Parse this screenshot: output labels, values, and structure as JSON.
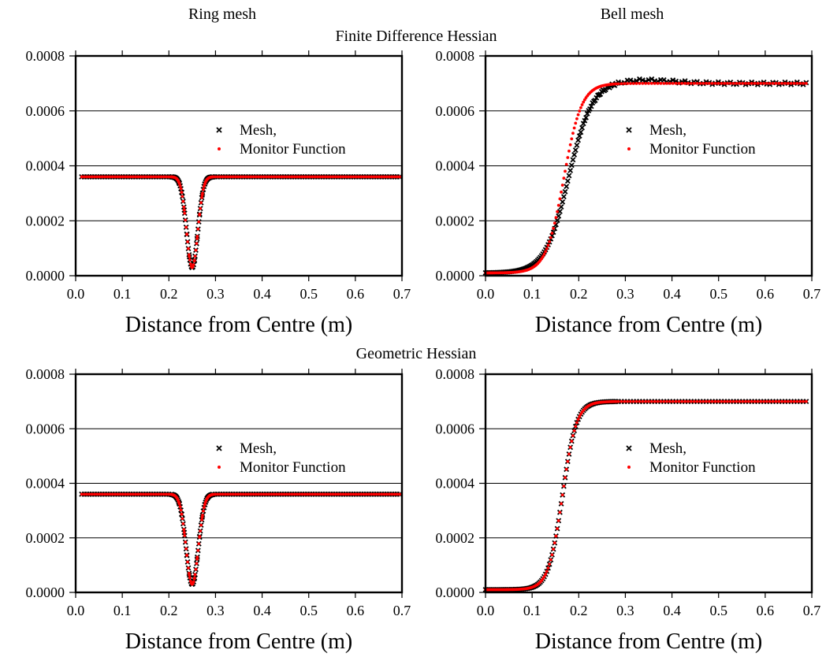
{
  "figure": {
    "column_titles": [
      "Ring mesh",
      "Bell mesh"
    ],
    "row_titles": [
      "Finite Difference Hessian",
      "Geometric Hessian"
    ],
    "colors": {
      "mesh": "#000000",
      "monitor": "#ff0000",
      "grid": "#000000",
      "background": "#ffffff"
    }
  },
  "chart_data": [
    {
      "type": "scatter",
      "id": "fd-ring",
      "xlabel": "Distance from Centre (m)",
      "xlim": [
        0.0,
        0.7
      ],
      "ylim": [
        0.0,
        0.0008
      ],
      "xticks": [
        "0.0",
        "0.1",
        "0.2",
        "0.3",
        "0.4",
        "0.5",
        "0.6",
        "0.7"
      ],
      "yticks": [
        "0.0000",
        "0.0002",
        "0.0004",
        "0.0006",
        "0.0008"
      ],
      "grid": "horizontal",
      "legend_position": "middle-right",
      "profile": {
        "kind": "ring",
        "base": 0.00036,
        "min": 3e-05,
        "center": 0.25,
        "width": 0.012,
        "x_range": [
          0.013,
          0.697
        ]
      },
      "series": [
        {
          "name": "Mesh,",
          "marker": "x",
          "color": "#000000"
        },
        {
          "name": "Monitor Function",
          "marker": "dot",
          "color": "#ff0000"
        }
      ]
    },
    {
      "type": "scatter",
      "id": "fd-bell",
      "xlabel": "Distance from Centre (m)",
      "xlim": [
        0.0,
        0.7
      ],
      "ylim": [
        0.0,
        0.0008
      ],
      "xticks": [
        "0.0",
        "0.1",
        "0.2",
        "0.3",
        "0.4",
        "0.5",
        "0.6",
        "0.7"
      ],
      "yticks": [
        "0.0000",
        "0.0002",
        "0.0004",
        "0.0006",
        "0.0008"
      ],
      "grid": "horizontal",
      "legend_position": "middle-right",
      "profile": {
        "kind": "bell",
        "base": 1e-05,
        "max": 0.0007,
        "center": 0.168,
        "width": 0.019,
        "mesh_center": 0.178,
        "mesh_width": 0.025,
        "overshoot": 1.3e-05,
        "x_range": [
          0.0,
          0.69
        ]
      },
      "series": [
        {
          "name": "Mesh,",
          "marker": "x",
          "color": "#000000"
        },
        {
          "name": "Monitor Function",
          "marker": "dot",
          "color": "#ff0000"
        }
      ]
    },
    {
      "type": "scatter",
      "id": "geo-ring",
      "xlabel": "Distance from Centre (m)",
      "xlim": [
        0.0,
        0.7
      ],
      "ylim": [
        0.0,
        0.0008
      ],
      "xticks": [
        "0.0",
        "0.1",
        "0.2",
        "0.3",
        "0.4",
        "0.5",
        "0.6",
        "0.7"
      ],
      "yticks": [
        "0.0000",
        "0.0002",
        "0.0004",
        "0.0006",
        "0.0008"
      ],
      "grid": "horizontal",
      "legend_position": "middle-right",
      "profile": {
        "kind": "ring",
        "base": 0.00036,
        "min": 3e-05,
        "center": 0.25,
        "width": 0.013,
        "x_range": [
          0.013,
          0.697
        ]
      },
      "series": [
        {
          "name": "Mesh,",
          "marker": "x",
          "color": "#000000"
        },
        {
          "name": "Monitor Function",
          "marker": "dot",
          "color": "#ff0000"
        }
      ]
    },
    {
      "type": "scatter",
      "id": "geo-bell",
      "xlabel": "Distance from Centre (m)",
      "xlim": [
        0.0,
        0.7
      ],
      "ylim": [
        0.0,
        0.0008
      ],
      "xticks": [
        "0.0",
        "0.1",
        "0.2",
        "0.3",
        "0.4",
        "0.5",
        "0.6",
        "0.7"
      ],
      "yticks": [
        "0.0000",
        "0.0002",
        "0.0004",
        "0.0006",
        "0.0008"
      ],
      "grid": "horizontal",
      "legend_position": "middle-right",
      "profile": {
        "kind": "bell",
        "base": 1e-05,
        "max": 0.0007,
        "center": 0.165,
        "width": 0.015,
        "mesh_center": 0.165,
        "mesh_width": 0.015,
        "overshoot": 0.0,
        "x_range": [
          0.0,
          0.69
        ]
      },
      "series": [
        {
          "name": "Mesh,",
          "marker": "x",
          "color": "#000000"
        },
        {
          "name": "Monitor Function",
          "marker": "dot",
          "color": "#ff0000"
        }
      ]
    }
  ]
}
